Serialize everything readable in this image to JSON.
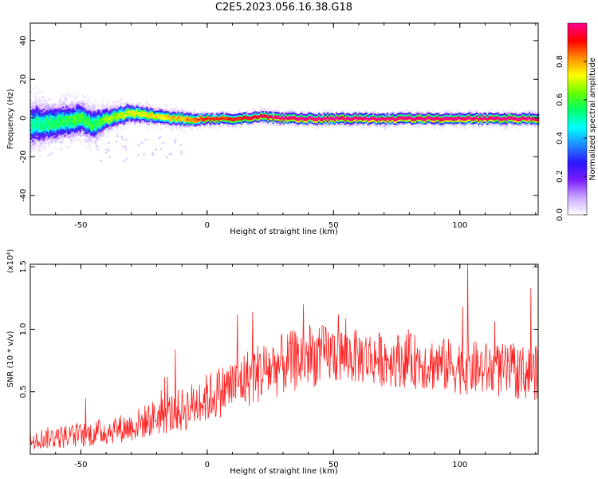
{
  "figure_title": "C2E5.2023.056.16.38.G18",
  "chart_data": [
    {
      "type": "heatmap",
      "xlabel": "Height of straight line (km)",
      "ylabel": "Frequency (Hz)",
      "xlim": [
        -70,
        131
      ],
      "ylim": [
        -50,
        49
      ],
      "xticks": [
        -50,
        0,
        50,
        100
      ],
      "yticks": [
        -40,
        -20,
        0,
        20,
        40
      ],
      "colorbar": {
        "label": "Normalized spectral amplitude",
        "ticks": [
          0.0,
          0.2,
          0.4,
          0.6,
          0.8
        ],
        "range": [
          0,
          1
        ],
        "colors": [
          "#ffffff",
          "#c9a6ff",
          "#7a1cff",
          "#2a18ff",
          "#1f8bff",
          "#00ffff",
          "#00ff6a",
          "#66ff00",
          "#ffff00",
          "#ff8c00",
          "#ff0000",
          "#ff0090"
        ]
      },
      "ridge": {
        "x": [
          -70,
          -60,
          -50,
          -45,
          -40,
          -30,
          -20,
          -10,
          0,
          10,
          20,
          30,
          40,
          50,
          60,
          70,
          80,
          90,
          100,
          110,
          120,
          131
        ],
        "frequency": [
          -3,
          -2,
          0,
          -3,
          0,
          3,
          1,
          0,
          0,
          0,
          1,
          0,
          0,
          0,
          0,
          0,
          0,
          0,
          0,
          0,
          0,
          0
        ],
        "spread_hz": [
          12,
          10,
          9,
          9,
          6,
          5,
          4,
          4,
          3,
          3,
          3,
          3,
          3,
          3,
          3,
          3,
          3,
          3,
          3,
          3,
          3,
          3
        ],
        "peak_amplitude": [
          0.45,
          0.5,
          0.55,
          0.5,
          0.6,
          0.65,
          0.7,
          0.75,
          0.85,
          0.85,
          0.9,
          0.95,
          0.95,
          0.95,
          0.95,
          0.95,
          0.95,
          0.95,
          0.95,
          0.95,
          0.95,
          0.95
        ]
      }
    },
    {
      "type": "line",
      "xlabel": "Height of straight line (km)",
      "ylabel": "SNR (10 * v/v)",
      "yscale_label": "(x10⁴)",
      "xlim": [
        -70,
        131
      ],
      "ylim": [
        0,
        1.52
      ],
      "xticks": [
        -50,
        0,
        50,
        100
      ],
      "yticks": [
        0.5,
        1.0,
        1.5
      ],
      "series": [
        {
          "color": "#ff2020",
          "trend_x": [
            -70,
            -50,
            -30,
            -20,
            -10,
            0,
            10,
            20,
            30,
            40,
            50,
            60,
            70,
            80,
            90,
            100,
            110,
            120,
            131
          ],
          "trend_y": [
            0.12,
            0.15,
            0.22,
            0.3,
            0.35,
            0.45,
            0.55,
            0.65,
            0.72,
            0.78,
            0.8,
            0.78,
            0.76,
            0.75,
            0.72,
            0.7,
            0.68,
            0.66,
            0.65
          ],
          "noise_amp": [
            0.08,
            0.1,
            0.12,
            0.15,
            0.18,
            0.2,
            0.22,
            0.25,
            0.25,
            0.25,
            0.24,
            0.22,
            0.22,
            0.22,
            0.22,
            0.22,
            0.22,
            0.22,
            0.22
          ],
          "peaks": [
            [
              103,
              1.52
            ],
            [
              128,
              1.33
            ],
            [
              101,
              1.18
            ],
            [
              38,
              1.2
            ],
            [
              12,
              1.12
            ],
            [
              18,
              1.14
            ]
          ]
        }
      ]
    }
  ]
}
